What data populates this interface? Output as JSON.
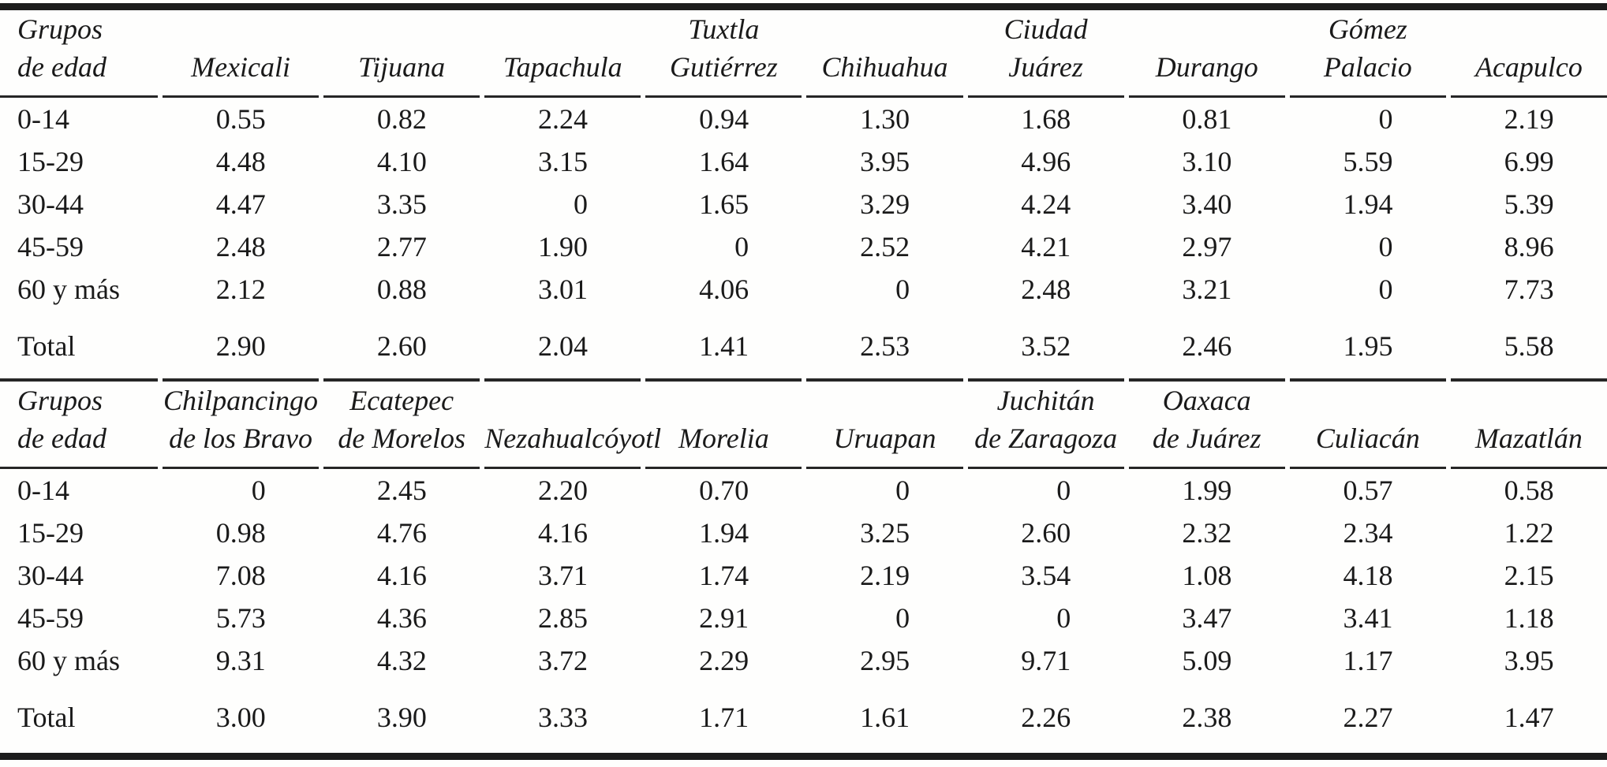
{
  "page": {
    "background_color": "#fefefd",
    "text_color": "#1a1a1a",
    "rule_color": "#1c1c1c"
  },
  "tables": [
    {
      "name": "age-groups-by-city-table-1",
      "stub_header": [
        "Grupos",
        "de edad"
      ],
      "columns": [
        [
          "Mexicali"
        ],
        [
          "Tijuana"
        ],
        [
          "Tapachula"
        ],
        [
          "Tuxtla",
          "Gutiérrez"
        ],
        [
          "Chihuahua"
        ],
        [
          "Ciudad",
          "Juárez"
        ],
        [
          "Durango"
        ],
        [
          "Gómez",
          "Palacio"
        ],
        [
          "Acapulco"
        ]
      ],
      "rows": [
        {
          "label": "0-14",
          "values": [
            "0.55",
            "0.82",
            "2.24",
            "0.94",
            "1.30",
            "1.68",
            "0.81",
            "0",
            "2.19"
          ],
          "is_total": false
        },
        {
          "label": "15-29",
          "values": [
            "4.48",
            "4.10",
            "3.15",
            "1.64",
            "3.95",
            "4.96",
            "3.10",
            "5.59",
            "6.99"
          ],
          "is_total": false
        },
        {
          "label": "30-44",
          "values": [
            "4.47",
            "3.35",
            "0",
            "1.65",
            "3.29",
            "4.24",
            "3.40",
            "1.94",
            "5.39"
          ],
          "is_total": false
        },
        {
          "label": "45-59",
          "values": [
            "2.48",
            "2.77",
            "1.90",
            "0",
            "2.52",
            "4.21",
            "2.97",
            "0",
            "8.96"
          ],
          "is_total": false
        },
        {
          "label": "60 y más",
          "values": [
            "2.12",
            "0.88",
            "3.01",
            "4.06",
            "0",
            "2.48",
            "3.21",
            "0",
            "7.73"
          ],
          "is_total": false
        },
        {
          "label": "Total",
          "values": [
            "2.90",
            "2.60",
            "2.04",
            "1.41",
            "2.53",
            "3.52",
            "2.46",
            "1.95",
            "5.58"
          ],
          "is_total": true
        }
      ]
    },
    {
      "name": "age-groups-by-city-table-2",
      "stub_header": [
        "Grupos",
        "de edad"
      ],
      "columns": [
        [
          "Chilpancingo",
          "de los Bravo"
        ],
        [
          "Ecatepec",
          "de Morelos"
        ],
        [
          "Nezahualcóyotl"
        ],
        [
          "Morelia"
        ],
        [
          "Uruapan"
        ],
        [
          "Juchitán",
          "de Zaragoza"
        ],
        [
          "Oaxaca",
          "de Juárez"
        ],
        [
          "Culiacán"
        ],
        [
          "Mazatlán"
        ]
      ],
      "rows": [
        {
          "label": "0-14",
          "values": [
            "0",
            "2.45",
            "2.20",
            "0.70",
            "0",
            "0",
            "1.99",
            "0.57",
            "0.58"
          ],
          "is_total": false
        },
        {
          "label": "15-29",
          "values": [
            "0.98",
            "4.76",
            "4.16",
            "1.94",
            "3.25",
            "2.60",
            "2.32",
            "2.34",
            "1.22"
          ],
          "is_total": false
        },
        {
          "label": "30-44",
          "values": [
            "7.08",
            "4.16",
            "3.71",
            "1.74",
            "2.19",
            "3.54",
            "1.08",
            "4.18",
            "2.15"
          ],
          "is_total": false
        },
        {
          "label": "45-59",
          "values": [
            "5.73",
            "4.36",
            "2.85",
            "2.91",
            "0",
            "0",
            "3.47",
            "3.41",
            "1.18"
          ],
          "is_total": false
        },
        {
          "label": "60 y más",
          "values": [
            "9.31",
            "4.32",
            "3.72",
            "2.29",
            "2.95",
            "9.71",
            "5.09",
            "1.17",
            "3.95"
          ],
          "is_total": false
        },
        {
          "label": "Total",
          "values": [
            "3.00",
            "3.90",
            "3.33",
            "1.71",
            "1.61",
            "2.26",
            "2.38",
            "2.27",
            "1.47"
          ],
          "is_total": true
        }
      ]
    }
  ]
}
